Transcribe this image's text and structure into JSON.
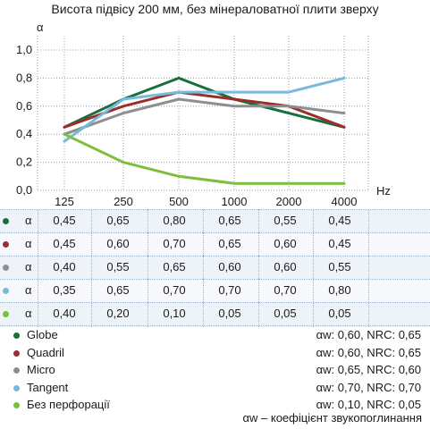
{
  "title": "Висота підвісу 200 мм, без мінераловатної плити зверху",
  "chart_data": {
    "type": "line",
    "title": "Висота підвісу 200 мм, без мінераловатної плити зверху",
    "ylabel": "α",
    "xlabel": "Hz",
    "categories": [
      "125",
      "250",
      "500",
      "1000",
      "2000",
      "4000"
    ],
    "ylim": [
      0,
      1.0
    ],
    "yticks": [
      "0,0",
      "0,2",
      "0,4",
      "0,6",
      "0,8",
      "1,0"
    ],
    "grid": true,
    "series": [
      {
        "name": "Globe",
        "color": "#1a6e3c",
        "values": [
          0.45,
          0.65,
          0.8,
          0.65,
          0.55,
          0.45
        ]
      },
      {
        "name": "Quadril",
        "color": "#9b2d2d",
        "values": [
          0.45,
          0.6,
          0.7,
          0.65,
          0.6,
          0.45
        ]
      },
      {
        "name": "Micro",
        "color": "#8e8e8e",
        "values": [
          0.4,
          0.55,
          0.65,
          0.6,
          0.6,
          0.55
        ]
      },
      {
        "name": "Tangent",
        "color": "#79b9d9",
        "values": [
          0.35,
          0.65,
          0.7,
          0.7,
          0.7,
          0.8
        ]
      },
      {
        "name": "Без перфорації",
        "color": "#7cbf3a",
        "values": [
          0.4,
          0.2,
          0.1,
          0.05,
          0.05,
          0.05
        ]
      }
    ]
  },
  "table": {
    "row_label": "α",
    "rows": [
      {
        "color": "#1a6e3c",
        "values": [
          "0,45",
          "0,65",
          "0,80",
          "0,65",
          "0,55",
          "0,45"
        ]
      },
      {
        "color": "#9b2d2d",
        "values": [
          "0,45",
          "0,60",
          "0,70",
          "0,65",
          "0,60",
          "0,45"
        ]
      },
      {
        "color": "#8e8e8e",
        "values": [
          "0,40",
          "0,55",
          "0,65",
          "0,60",
          "0,60",
          "0,55"
        ]
      },
      {
        "color": "#79b9d9",
        "values": [
          "0,35",
          "0,65",
          "0,70",
          "0,70",
          "0,70",
          "0,80"
        ]
      },
      {
        "color": "#7cbf3a",
        "values": [
          "0,40",
          "0,20",
          "0,10",
          "0,05",
          "0,05",
          "0,05"
        ]
      }
    ]
  },
  "legend": [
    {
      "name": "Globe",
      "color": "#1a6e3c",
      "nrc": "αw: 0,60, NRC: 0,65"
    },
    {
      "name": "Quadril",
      "color": "#9b2d2d",
      "nrc": "αw: 0,60, NRC: 0,65"
    },
    {
      "name": "Micro",
      "color": "#8e8e8e",
      "nrc": "αw: 0,65, NRC: 0,60"
    },
    {
      "name": "Tangent",
      "color": "#79b9d9",
      "nrc": "αw: 0,70, NRC: 0,70"
    },
    {
      "name": "Без перфорації",
      "color": "#7cbf3a",
      "nrc": "αw: 0,10, NRC: 0,05"
    }
  ],
  "footnote": "αw – коефіцієнт звукопоглинання"
}
